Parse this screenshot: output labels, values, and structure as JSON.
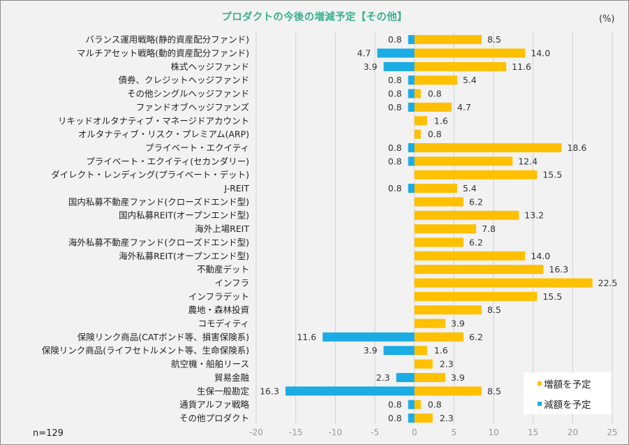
{
  "chart_data": {
    "type": "bar",
    "orientation": "horizontal",
    "title": "プロダクトの今後の増減予定【その他】",
    "unit_label": "(%)",
    "sample_note": "n=129",
    "xlabel": "",
    "ylabel": "",
    "xlim": [
      -20,
      25
    ],
    "x_ticks": [
      -20,
      -15,
      -10,
      -5,
      0,
      5,
      10,
      15,
      20,
      25
    ],
    "x_tick_labels": [
      "-20",
      "-15",
      "-10",
      "-5",
      "0",
      "5",
      "10",
      "15",
      "20",
      "25"
    ],
    "grid": true,
    "legend_position": "bottom-right",
    "categories": [
      "バランス運用戦略(静的資産配分ファンド)",
      "マルチアセット戦略(動的資産配分ファンド)",
      "株式ヘッジファンド",
      "債券、クレジットヘッジファンド",
      "その他シングルヘッジファンド",
      "ファンドオブヘッジファンズ",
      "リキッドオルタナティブ・マネージドアカウント",
      "オルタナティブ・リスク・プレミアム(ARP)",
      "プライベート・エクイティ",
      "プライベート・エクイティ(セカンダリー)",
      "ダイレクト・レンディング(プライベート・デット)",
      "J-REIT",
      "国内私募不動産ファンド(クローズドエンド型)",
      "国内私募REIT(オープンエンド型)",
      "海外上場REIT",
      "海外私募不動産ファンド(クローズドエンド型)",
      "海外私募REIT(オープンエンド型)",
      "不動産デット",
      "インフラ",
      "インフラデット",
      "農地・森林投資",
      "コモディティ",
      "保険リンク商品(CATボンド等、損害保険系)",
      "保険リンク商品(ライフセトルメント等、生命保険系)",
      "航空機・船舶リース",
      "貿易金融",
      "生保一般勘定",
      "通貨アルファ戦略",
      "その他プロダクト"
    ],
    "series": [
      {
        "name": "増額を予定",
        "color": "#ffc000",
        "values": [
          8.5,
          14.0,
          11.6,
          5.4,
          0.8,
          4.7,
          1.6,
          0.8,
          18.6,
          12.4,
          15.5,
          5.4,
          6.2,
          13.2,
          7.8,
          6.2,
          14.0,
          16.3,
          22.5,
          15.5,
          8.5,
          3.9,
          6.2,
          1.6,
          2.3,
          3.9,
          8.5,
          0.8,
          2.3
        ],
        "labels": [
          "8.5",
          "14.0",
          "11.6",
          "5.4",
          "0.8",
          "4.7",
          "1.6",
          "0.8",
          "18.6",
          "12.4",
          "15.5",
          "5.4",
          "6.2",
          "13.2",
          "7.8",
          "6.2",
          "14.0",
          "16.3",
          "22.5",
          "15.5",
          "8.5",
          "3.9",
          "6.2",
          "1.6",
          "2.3",
          "3.9",
          "8.5",
          "0.8",
          "2.3"
        ]
      },
      {
        "name": "減額を予定",
        "color": "#1cace4",
        "values": [
          -0.8,
          -4.7,
          -3.9,
          -0.8,
          -0.8,
          -0.8,
          null,
          null,
          -0.8,
          -0.8,
          null,
          -0.8,
          null,
          null,
          null,
          null,
          null,
          null,
          null,
          null,
          null,
          null,
          -11.6,
          -3.9,
          null,
          -2.3,
          -16.3,
          -0.8,
          -0.8
        ],
        "labels": [
          "0.8",
          "4.7",
          "3.9",
          "0.8",
          "0.8",
          "0.8",
          null,
          null,
          "0.8",
          "0.8",
          null,
          "0.8",
          null,
          null,
          null,
          null,
          null,
          null,
          null,
          null,
          null,
          null,
          "11.6",
          "3.9",
          null,
          "2.3",
          "16.3",
          "0.8",
          "0.8"
        ]
      }
    ]
  },
  "colors": {
    "title": "#3bb08f",
    "increase": "#ffc000",
    "decrease": "#1cace4",
    "grid": "#d0d0d0"
  }
}
